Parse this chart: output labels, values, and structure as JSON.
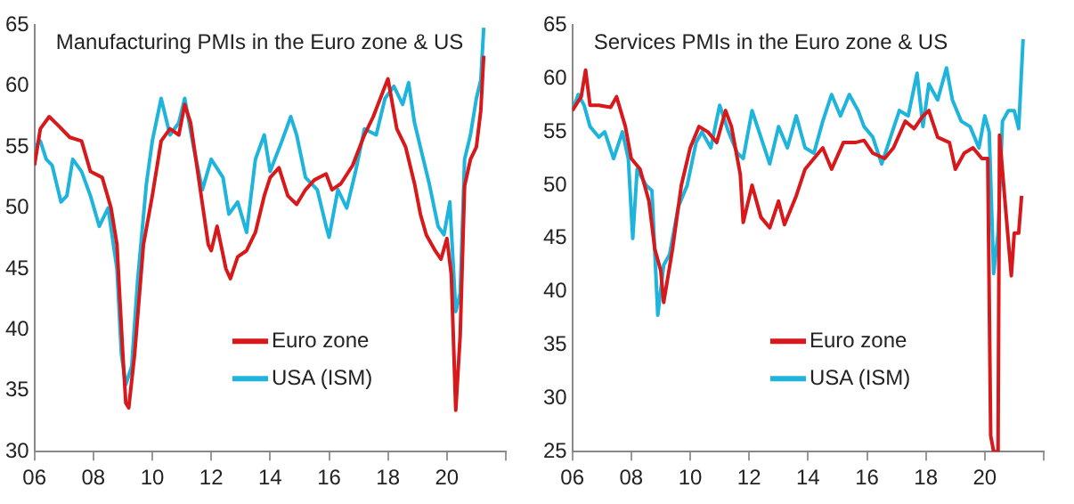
{
  "chart_data": [
    {
      "type": "line",
      "title": "Manufacturing PMIs in the Euro zone & US",
      "xlim": [
        2006,
        2022
      ],
      "xticks": [
        {
          "value": 2006,
          "label": "06"
        },
        {
          "value": 2008,
          "label": "08"
        },
        {
          "value": 2010,
          "label": "10"
        },
        {
          "value": 2012,
          "label": "12"
        },
        {
          "value": 2014,
          "label": "14"
        },
        {
          "value": 2016,
          "label": "16"
        },
        {
          "value": 2018,
          "label": "18"
        },
        {
          "value": 2020,
          "label": "20"
        },
        {
          "value": 2022,
          "label": null
        }
      ],
      "ylim": [
        30,
        65
      ],
      "yticks": [
        30,
        35,
        40,
        45,
        50,
        55,
        60,
        65
      ],
      "legend": "bottom",
      "grid": false,
      "marker": "none",
      "series": [
        {
          "name": "Euro zone",
          "color": "#d7191c",
          "x": [
            2006.0,
            2006.2,
            2006.5,
            2006.8,
            2007.2,
            2007.6,
            2007.9,
            2008.3,
            2008.6,
            2008.8,
            2009.0,
            2009.1,
            2009.2,
            2009.4,
            2009.7,
            2010.0,
            2010.3,
            2010.6,
            2010.9,
            2011.1,
            2011.3,
            2011.6,
            2011.9,
            2012.0,
            2012.2,
            2012.5,
            2012.65,
            2012.9,
            2013.2,
            2013.5,
            2013.8,
            2014.0,
            2014.3,
            2014.6,
            2014.9,
            2015.2,
            2015.5,
            2015.9,
            2016.1,
            2016.4,
            2016.8,
            2017.2,
            2017.5,
            2017.9,
            2018.0,
            2018.3,
            2018.6,
            2018.9,
            2019.1,
            2019.3,
            2019.6,
            2019.8,
            2020.0,
            2020.15,
            2020.3,
            2020.45,
            2020.6,
            2020.8,
            2021.0,
            2021.15,
            2021.25
          ],
          "values": [
            53.5,
            56.5,
            57.5,
            56.8,
            55.8,
            55.5,
            53,
            52.5,
            50,
            47,
            38,
            34,
            33.6,
            38,
            47,
            51,
            55.5,
            56.5,
            56,
            58.5,
            57,
            52,
            47,
            46.5,
            48.5,
            45,
            44.2,
            46,
            46.5,
            48,
            51,
            52.5,
            53.3,
            51,
            50.3,
            51.5,
            52.3,
            52.8,
            51.5,
            52,
            53.5,
            56,
            57.5,
            60,
            60.6,
            56.5,
            55,
            52,
            49.5,
            47.8,
            46.5,
            45.8,
            47.5,
            44.5,
            33.4,
            39.5,
            51.8,
            54,
            55,
            58,
            62.5
          ]
        },
        {
          "name": "USA (ISM)",
          "color": "#1fb4dc",
          "x": [
            2006.0,
            2006.2,
            2006.4,
            2006.6,
            2006.9,
            2007.1,
            2007.3,
            2007.6,
            2007.9,
            2008.2,
            2008.5,
            2008.8,
            2008.95,
            2009.1,
            2009.3,
            2009.5,
            2009.8,
            2010.0,
            2010.3,
            2010.6,
            2010.9,
            2011.1,
            2011.4,
            2011.7,
            2012.0,
            2012.4,
            2012.6,
            2012.9,
            2013.2,
            2013.5,
            2013.8,
            2014.0,
            2014.4,
            2014.7,
            2014.9,
            2015.2,
            2015.6,
            2015.9,
            2016.0,
            2016.3,
            2016.6,
            2016.9,
            2017.2,
            2017.6,
            2017.9,
            2018.2,
            2018.5,
            2018.7,
            2018.9,
            2019.1,
            2019.4,
            2019.7,
            2019.9,
            2020.1,
            2020.3,
            2020.45,
            2020.6,
            2020.8,
            2021.0,
            2021.15,
            2021.25
          ],
          "values": [
            55,
            55.5,
            54,
            53.5,
            50.5,
            51,
            54,
            53,
            51,
            48.5,
            50,
            45,
            38,
            35.5,
            37,
            44,
            52,
            55.5,
            59,
            56,
            57,
            59,
            55,
            51.5,
            54,
            52.5,
            49.5,
            50.5,
            48,
            54,
            56,
            53,
            55.5,
            57.5,
            56,
            52.5,
            51.5,
            48.5,
            47.6,
            51.5,
            50,
            53,
            56.5,
            56,
            59,
            60,
            58.5,
            60.3,
            57,
            55,
            52,
            48.5,
            47.8,
            50.5,
            41.5,
            43,
            54,
            56,
            59,
            60.5,
            64.8
          ]
        }
      ]
    },
    {
      "type": "line",
      "title": "Services PMIs in the Euro zone & US",
      "xlim": [
        2006,
        2022
      ],
      "xticks": [
        {
          "value": 2006,
          "label": "06"
        },
        {
          "value": 2008,
          "label": "08"
        },
        {
          "value": 2010,
          "label": "10"
        },
        {
          "value": 2012,
          "label": "12"
        },
        {
          "value": 2014,
          "label": "14"
        },
        {
          "value": 2016,
          "label": "16"
        },
        {
          "value": 2018,
          "label": "18"
        },
        {
          "value": 2020,
          "label": "20"
        },
        {
          "value": 2022,
          "label": null
        }
      ],
      "ylim": [
        25,
        65
      ],
      "yticks": [
        25,
        30,
        35,
        40,
        45,
        50,
        55,
        60,
        65
      ],
      "legend": "bottom",
      "grid": false,
      "marker": "none",
      "series": [
        {
          "name": "Euro zone",
          "color": "#d7191c",
          "x": [
            2006.0,
            2006.3,
            2006.45,
            2006.6,
            2006.9,
            2007.3,
            2007.5,
            2007.8,
            2008.0,
            2008.3,
            2008.6,
            2008.8,
            2009.0,
            2009.1,
            2009.4,
            2009.7,
            2010.0,
            2010.3,
            2010.6,
            2010.9,
            2011.2,
            2011.4,
            2011.7,
            2011.8,
            2012.1,
            2012.4,
            2012.7,
            2013.0,
            2013.2,
            2013.6,
            2013.9,
            2014.2,
            2014.5,
            2014.8,
            2015.2,
            2015.6,
            2015.9,
            2016.2,
            2016.6,
            2016.9,
            2017.3,
            2017.6,
            2017.9,
            2018.1,
            2018.4,
            2018.8,
            2019.0,
            2019.3,
            2019.6,
            2019.9,
            2020.1,
            2020.2,
            2020.3,
            2020.45,
            2020.5,
            2020.7,
            2020.9,
            2021.0,
            2021.15,
            2021.25
          ],
          "values": [
            57,
            58.3,
            60.8,
            57.5,
            57.5,
            57.3,
            58.3,
            55.5,
            52.5,
            51.5,
            48.5,
            44,
            42,
            39,
            44,
            50,
            53.5,
            55.5,
            55,
            54,
            57,
            55.5,
            51,
            46.5,
            50,
            47,
            46,
            48.5,
            46.3,
            49,
            51.5,
            52.5,
            53.5,
            51.5,
            54,
            54,
            54.2,
            53,
            52.5,
            53.5,
            56,
            55.3,
            56.5,
            57,
            54.5,
            54,
            51.5,
            53,
            53.5,
            52.5,
            52.5,
            26.5,
            25,
            25,
            54.7,
            48,
            41.5,
            45.5,
            45.5,
            49
          ]
        },
        {
          "name": "USA (ISM)",
          "color": "#1fb4dc",
          "x": [
            2006.0,
            2006.2,
            2006.4,
            2006.6,
            2006.9,
            2007.1,
            2007.4,
            2007.7,
            2007.9,
            2008.05,
            2008.2,
            2008.5,
            2008.7,
            2008.9,
            2009.1,
            2009.3,
            2009.6,
            2009.9,
            2010.2,
            2010.4,
            2010.7,
            2011.0,
            2011.3,
            2011.6,
            2011.8,
            2012.1,
            2012.4,
            2012.7,
            2013.0,
            2013.3,
            2013.6,
            2013.9,
            2014.2,
            2014.5,
            2014.8,
            2015.1,
            2015.4,
            2015.7,
            2015.9,
            2016.2,
            2016.5,
            2016.8,
            2017.1,
            2017.4,
            2017.7,
            2017.9,
            2018.1,
            2018.4,
            2018.7,
            2018.9,
            2019.2,
            2019.5,
            2019.8,
            2020.0,
            2020.15,
            2020.3,
            2020.45,
            2020.6,
            2020.8,
            2021.0,
            2021.15,
            2021.3
          ],
          "values": [
            57,
            58.5,
            57.5,
            55.5,
            54.5,
            55,
            52.5,
            55,
            52.5,
            45,
            51.5,
            50,
            49.5,
            37.8,
            42.5,
            43.5,
            48,
            50,
            54,
            55,
            53.5,
            57.5,
            55,
            53,
            52.5,
            57,
            54.5,
            52,
            55.5,
            53.5,
            56.5,
            53.5,
            53,
            56,
            58.5,
            56.5,
            58.5,
            57,
            55.5,
            54.5,
            52,
            54.5,
            57,
            56.5,
            60.5,
            55.5,
            59.5,
            58,
            61,
            58,
            56,
            55.5,
            53.5,
            56.5,
            55,
            41.7,
            45.5,
            56,
            57,
            57,
            55.3,
            63.7
          ]
        }
      ]
    }
  ]
}
